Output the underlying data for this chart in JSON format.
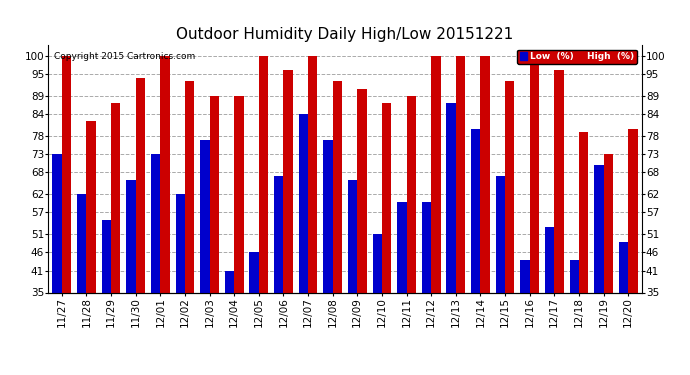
{
  "title": "Outdoor Humidity Daily High/Low 20151221",
  "copyright": "Copyright 2015 Cartronics.com",
  "categories": [
    "11/27",
    "11/28",
    "11/29",
    "11/30",
    "12/01",
    "12/02",
    "12/03",
    "12/04",
    "12/05",
    "12/06",
    "12/07",
    "12/08",
    "12/09",
    "12/10",
    "12/11",
    "12/12",
    "12/13",
    "12/14",
    "12/15",
    "12/16",
    "12/17",
    "12/18",
    "12/19",
    "12/20"
  ],
  "high_values": [
    100,
    82,
    87,
    94,
    100,
    93,
    89,
    89,
    100,
    96,
    100,
    93,
    91,
    87,
    89,
    100,
    100,
    100,
    93,
    100,
    96,
    79,
    73,
    80
  ],
  "low_values": [
    73,
    62,
    55,
    66,
    73,
    62,
    77,
    41,
    46,
    67,
    84,
    77,
    66,
    51,
    60,
    60,
    87,
    80,
    67,
    44,
    53,
    44,
    70,
    49
  ],
  "bar_color_low": "#0000cc",
  "bar_color_high": "#cc0000",
  "bg_color": "#ffffff",
  "grid_color": "#aaaaaa",
  "yticks": [
    35,
    41,
    46,
    51,
    57,
    62,
    68,
    73,
    78,
    84,
    89,
    95,
    100
  ],
  "ylim": [
    35,
    103
  ],
  "ymin": 35,
  "legend_low_color": "#0000cc",
  "legend_high_color": "#cc0000",
  "title_fontsize": 11,
  "tick_fontsize": 7.5
}
